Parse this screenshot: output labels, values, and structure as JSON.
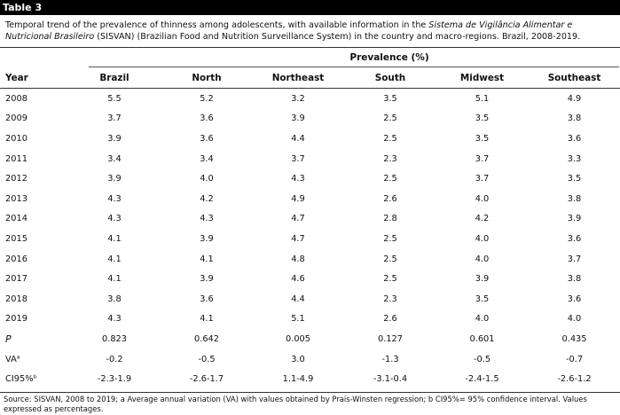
{
  "table_label": "Table 3",
  "caption": {
    "part1": "Temporal trend of the prevalence of thinness among adolescents, with available information in the ",
    "italic": "Sistema de Vigilância Alimentar e Nutricional Brasileiro",
    "part2": " (SISVAN) (Brazilian Food and Nutrition Surveillance System) in the country and macro-regions. Brazil, 2008-2019."
  },
  "prevalence_header": "Prevalence (%)",
  "columns": [
    "Year",
    "Brazil",
    "North",
    "Northeast",
    "South",
    "Midwest",
    "Southeast"
  ],
  "rows": [
    [
      "2008",
      "5.5",
      "5.2",
      "3.2",
      "3.5",
      "5.1",
      "4.9"
    ],
    [
      "2009",
      "3.7",
      "3.6",
      "3.9",
      "2.5",
      "3.5",
      "3.8"
    ],
    [
      "2010",
      "3.9",
      "3.6",
      "4.4",
      "2.5",
      "3.5",
      "3.6"
    ],
    [
      "2011",
      "3.4",
      "3.4",
      "3.7",
      "2.3",
      "3.7",
      "3.3"
    ],
    [
      "2012",
      "3.9",
      "4.0",
      "4.3",
      "2.5",
      "3.7",
      "3.5"
    ],
    [
      "2013",
      "4.3",
      "4.2",
      "4.9",
      "2.6",
      "4.0",
      "3.8"
    ],
    [
      "2014",
      "4.3",
      "4.3",
      "4.7",
      "2.8",
      "4.2",
      "3.9"
    ],
    [
      "2015",
      "4.1",
      "3.9",
      "4.7",
      "2.5",
      "4.0",
      "3.6"
    ],
    [
      "2016",
      "4.1",
      "4.1",
      "4.8",
      "2.5",
      "4.0",
      "3.7"
    ],
    [
      "2017",
      "4.1",
      "3.9",
      "4.6",
      "2.5",
      "3.9",
      "3.8"
    ],
    [
      "2018",
      "3.8",
      "3.6",
      "4.4",
      "2.3",
      "3.5",
      "3.6"
    ],
    [
      "2019",
      "4.3",
      "4.1",
      "5.1",
      "2.6",
      "4.0",
      "4.0"
    ]
  ],
  "stat_rows": [
    [
      "P",
      "0.823",
      "0.642",
      "0.005",
      "0.127",
      "0.601",
      "0.435"
    ],
    [
      "VAᵃ",
      "-0.2",
      "-0.5",
      "3.0",
      "-1.3",
      "-0.5",
      "-0.7"
    ],
    [
      "CI95%ᵇ",
      "-2.3-1.9",
      "-2.6-1.7",
      "1.1-4.9",
      "-3.1-0.4",
      "-2.4-1.5",
      "-2.6-1.2"
    ]
  ],
  "footer": "Source: SISVAN, 2008 to 2019; a Average annual variation (VA) with values obtained by Prais-Winsten regression; b CI95%= 95% confidence interval. Values expressed as percentages."
}
